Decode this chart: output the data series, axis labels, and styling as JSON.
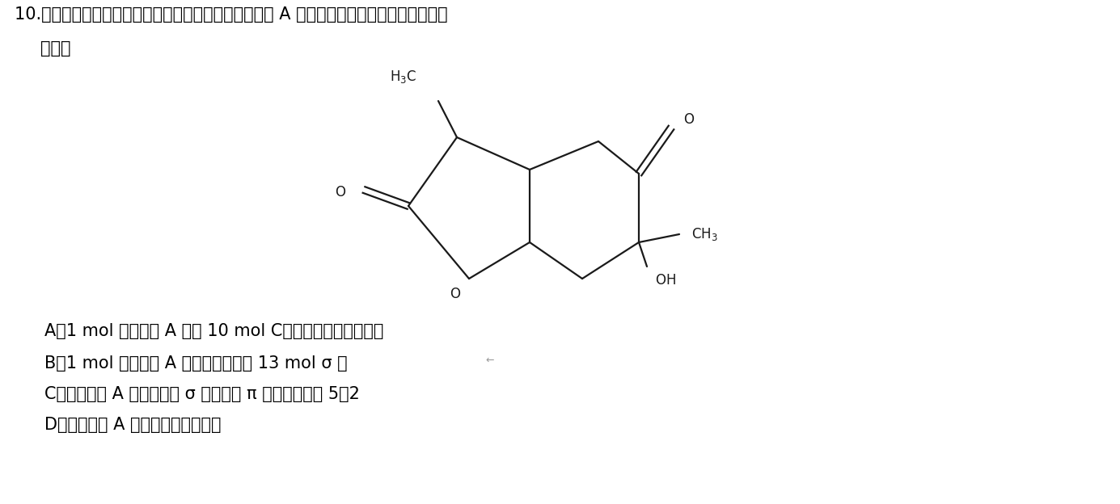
{
  "question_line1": "10.　芍药是我国著名的中药材之一，其含有的芍药内苷 A 的结构如图所示，下列有关说法正",
  "question_line2": "确的是",
  "optionA": "A．1 mol 芍药内苷 A 含有 10 mol C，且均形成极性共价键",
  "optionB": "B．1 mol 芍药内苷 A 中氮原子共形成 13 mol σ 键",
  "optionC": "C．芍药内苷 A 分子中碳氧 σ 键与碳氧 π 键数目之比为 5：2",
  "optionD": "D．芍药内苷 A 分子属于非极性分子",
  "bg_color": "#ffffff",
  "text_color": "#000000"
}
